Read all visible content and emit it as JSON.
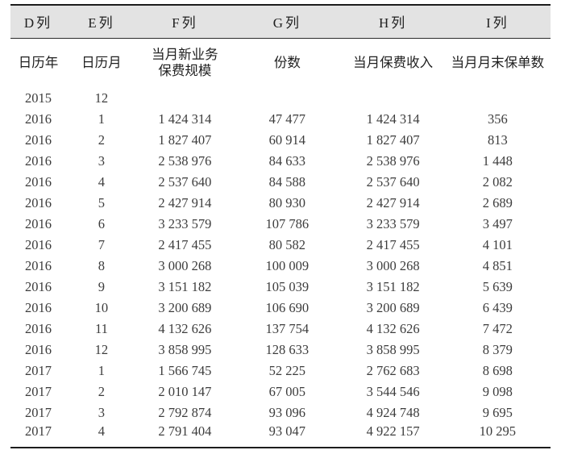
{
  "table": {
    "col_headers": [
      "D列",
      "E列",
      "F列",
      "G列",
      "H列",
      "I列"
    ],
    "field_headers": [
      "日历年",
      "日历月",
      "当月新业务\n保费规模",
      "份数",
      "当月保费收入",
      "当月月末保单数"
    ],
    "rows": [
      [
        "2015",
        "12",
        "",
        "",
        "",
        ""
      ],
      [
        "2016",
        "1",
        "1 424 314",
        "47 477",
        "1 424 314",
        "356"
      ],
      [
        "2016",
        "2",
        "1 827 407",
        "60 914",
        "1 827 407",
        "813"
      ],
      [
        "2016",
        "3",
        "2 538 976",
        "84 633",
        "2 538 976",
        "1 448"
      ],
      [
        "2016",
        "4",
        "2 537 640",
        "84 588",
        "2 537 640",
        "2 082"
      ],
      [
        "2016",
        "5",
        "2 427 914",
        "80 930",
        "2 427 914",
        "2 689"
      ],
      [
        "2016",
        "6",
        "3 233 579",
        "107 786",
        "3 233 579",
        "3 497"
      ],
      [
        "2016",
        "7",
        "2 417 455",
        "80 582",
        "2 417 455",
        "4 101"
      ],
      [
        "2016",
        "8",
        "3 000 268",
        "100 009",
        "3 000 268",
        "4 851"
      ],
      [
        "2016",
        "9",
        "3 151 182",
        "105 039",
        "3 151 182",
        "5 639"
      ],
      [
        "2016",
        "10",
        "3 200 689",
        "106 690",
        "3 200 689",
        "6 439"
      ],
      [
        "2016",
        "11",
        "4 132 626",
        "137 754",
        "4 132 626",
        "7 472"
      ],
      [
        "2016",
        "12",
        "3 858 995",
        "128 633",
        "3 858 995",
        "8 379"
      ],
      [
        "2017",
        "1",
        "1 566 745",
        "52 225",
        "2 762 683",
        "8 698"
      ],
      [
        "2017",
        "2",
        "2 010 147",
        "67 005",
        "3 544 546",
        "9 098"
      ],
      [
        "2017",
        "3",
        "2 792 874",
        "93 096",
        "4 924 748",
        "9 695"
      ],
      [
        "2017",
        "4",
        "2 791 404",
        "93 047",
        "4 922 157",
        "10 295"
      ]
    ]
  }
}
